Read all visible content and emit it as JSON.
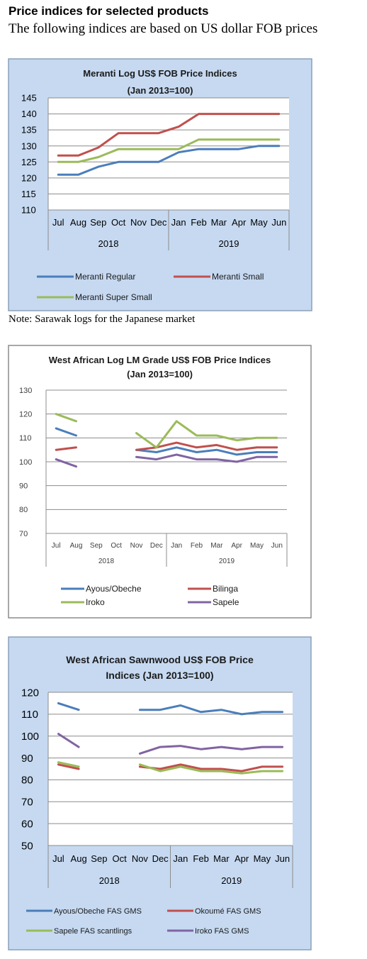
{
  "page": {
    "heading": "Price indices for selected products",
    "subheading": "The following indices are based on US dollar FOB prices",
    "note": "Note: Sarawak logs for the Japanese market"
  },
  "chart_data": [
    {
      "type": "line",
      "title": [
        "Meranti Log US$ FOB Price Indices",
        "(Jan 2013=100)"
      ],
      "categories": [
        "Jul",
        "Aug",
        "Sep",
        "Oct",
        "Nov",
        "Dec",
        "Jan",
        "Feb",
        "Mar",
        "Apr",
        "May",
        "Jun"
      ],
      "groups": [
        {
          "label": "2018",
          "span": 6
        },
        {
          "label": "2019",
          "span": 6
        }
      ],
      "ylim": [
        110,
        145
      ],
      "yticks": [
        110,
        115,
        120,
        125,
        130,
        135,
        140,
        145
      ],
      "grid": true,
      "legend_position": "bottom",
      "series": [
        {
          "name": "Meranti Regular",
          "color": "#4a7ebb",
          "values": [
            121,
            121,
            123.5,
            125,
            125,
            125,
            128,
            129,
            129,
            129,
            130,
            130
          ]
        },
        {
          "name": "Meranti Small",
          "color": "#c0504d",
          "values": [
            127,
            127,
            129.5,
            134,
            134,
            134,
            136,
            140,
            140,
            140,
            140,
            140
          ]
        },
        {
          "name": "Meranti Super Small",
          "color": "#9bbb59",
          "values": [
            125,
            125,
            126.5,
            129,
            129,
            129,
            129,
            132,
            132,
            132,
            132,
            132
          ]
        }
      ]
    },
    {
      "type": "line",
      "title": [
        "West African Log LM Grade US$ FOB Price Indices",
        "(Jan 2013=100)"
      ],
      "categories": [
        "Jul",
        "Aug",
        "Sep",
        "Oct",
        "Nov",
        "Dec",
        "Jan",
        "Feb",
        "Mar",
        "Apr",
        "May",
        "Jun"
      ],
      "groups": [
        {
          "label": "2018",
          "span": 6
        },
        {
          "label": "2019",
          "span": 6
        }
      ],
      "ylim": [
        70,
        130
      ],
      "yticks": [
        70,
        80,
        90,
        100,
        110,
        120,
        130
      ],
      "grid": true,
      "legend_position": "bottom",
      "series": [
        {
          "name": "Ayous/Obeche",
          "color": "#4a7ebb",
          "values": [
            114,
            111,
            null,
            null,
            105,
            104,
            106,
            104,
            105,
            103,
            104,
            104
          ]
        },
        {
          "name": "Bilinga",
          "color": "#c0504d",
          "values": [
            105,
            106,
            null,
            null,
            105,
            106,
            108,
            106,
            107,
            105,
            106,
            106
          ]
        },
        {
          "name": "Iroko",
          "color": "#9bbb59",
          "values": [
            120,
            117,
            null,
            null,
            112,
            106,
            117,
            111,
            111,
            109,
            110,
            110
          ]
        },
        {
          "name": "Sapele",
          "color": "#8064a2",
          "values": [
            101,
            98,
            null,
            null,
            102,
            101,
            103,
            101,
            101,
            100,
            102,
            102
          ]
        }
      ]
    },
    {
      "type": "line",
      "title": [
        "West African Sawnwood US$ FOB Price",
        "Indices (Jan 2013=100)"
      ],
      "categories": [
        "Jul",
        "Aug",
        "Sep",
        "Oct",
        "Nov",
        "Dec",
        "Jan",
        "Feb",
        "Mar",
        "Apr",
        "May",
        "Jun"
      ],
      "groups": [
        {
          "label": "2018",
          "span": 6
        },
        {
          "label": "2019",
          "span": 6
        }
      ],
      "ylim": [
        50,
        120
      ],
      "yticks": [
        50,
        60,
        70,
        80,
        90,
        100,
        110,
        120
      ],
      "grid": true,
      "legend_position": "bottom",
      "series": [
        {
          "name": "Ayous/Obeche FAS GMS",
          "color": "#4a7ebb",
          "values": [
            115,
            112,
            null,
            null,
            112,
            112,
            114,
            111,
            112,
            110,
            111,
            111
          ]
        },
        {
          "name": "Okoumé  FAS GMS",
          "color": "#c0504d",
          "values": [
            87,
            85,
            null,
            null,
            86,
            85,
            87,
            85,
            85,
            84,
            86,
            86
          ]
        },
        {
          "name": "Sapele FAS scantlings",
          "color": "#9bbb59",
          "values": [
            88,
            86,
            null,
            null,
            87,
            84,
            86,
            84,
            84,
            83,
            84,
            84
          ]
        },
        {
          "name": "Iroko FAS GMS",
          "color": "#8064a2",
          "values": [
            101,
            95,
            null,
            null,
            92,
            95,
            95.5,
            94,
            95,
            94,
            95,
            95
          ]
        }
      ]
    }
  ]
}
